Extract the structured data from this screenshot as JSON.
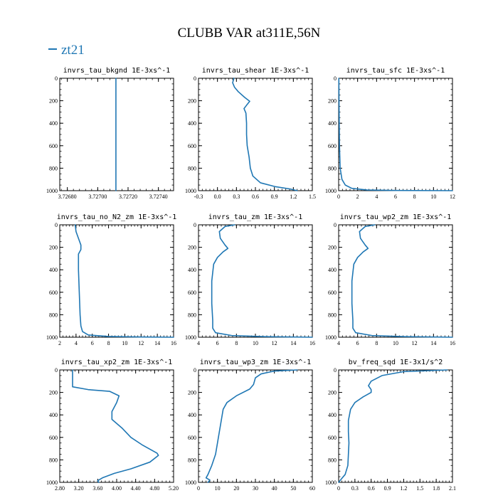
{
  "title": "CLUBB VAR at311E,56N",
  "legend": {
    "label": "zt21",
    "color": "#1f77b4"
  },
  "chart_data": [
    {
      "type": "line",
      "title": "invrs_tau_bkgnd   1E-3xs^-1",
      "xlim": [
        3.72675,
        3.7275
      ],
      "ylim": [
        0,
        1000
      ],
      "y_inverted": true,
      "xticks": [
        "3.72680",
        "3.72700",
        "3.72720",
        "3.72740"
      ],
      "xtick_values": [
        3.7268,
        3.727,
        3.7272,
        3.7274
      ],
      "yticks": [
        "0",
        "200",
        "400",
        "600",
        "800",
        "1000"
      ],
      "series": [
        {
          "values": [
            [
              3.72712,
              0
            ],
            [
              3.72712,
              1000
            ]
          ]
        }
      ]
    },
    {
      "type": "line",
      "title": "invrs_tau_shear   1E-3xs^-1",
      "xlim": [
        -0.3,
        1.5
      ],
      "ylim": [
        0,
        1000
      ],
      "y_inverted": true,
      "xticks": [
        "-0.3",
        "0.0",
        "0.3",
        "0.6",
        "0.9",
        "1.2",
        "1.5"
      ],
      "xtick_values": [
        -0.3,
        0,
        0.3,
        0.6,
        0.9,
        1.2,
        1.5
      ],
      "yticks": [
        "0",
        "200",
        "400",
        "600",
        "800",
        "1000"
      ],
      "series": [
        {
          "values": [
            [
              0.26,
              0
            ],
            [
              0.24,
              40
            ],
            [
              0.27,
              80
            ],
            [
              0.33,
              120
            ],
            [
              0.43,
              170
            ],
            [
              0.51,
              205
            ],
            [
              0.46,
              240
            ],
            [
              0.42,
              270
            ],
            [
              0.45,
              310
            ],
            [
              0.46,
              400
            ],
            [
              0.46,
              500
            ],
            [
              0.47,
              600
            ],
            [
              0.5,
              700
            ],
            [
              0.52,
              800
            ],
            [
              0.56,
              870
            ],
            [
              0.68,
              930
            ],
            [
              0.92,
              965
            ],
            [
              1.15,
              985
            ],
            [
              1.26,
              1000
            ]
          ]
        }
      ]
    },
    {
      "type": "line",
      "title": "invrs_tau_sfc   1E-3xs^-1",
      "xlim": [
        0,
        12
      ],
      "ylim": [
        0,
        1000
      ],
      "y_inverted": true,
      "xticks": [
        "0",
        "2",
        "4",
        "6",
        "8",
        "10",
        "12"
      ],
      "xtick_values": [
        0,
        2,
        4,
        6,
        8,
        10,
        12
      ],
      "yticks": [
        "0",
        "200",
        "400",
        "600",
        "800",
        "1000"
      ],
      "series": [
        {
          "values": [
            [
              0.02,
              0
            ],
            [
              0.05,
              300
            ],
            [
              0.09,
              600
            ],
            [
              0.16,
              800
            ],
            [
              0.35,
              900
            ],
            [
              0.7,
              950
            ],
            [
              1.4,
              980
            ],
            [
              3.0,
              994
            ],
            [
              6.0,
              998
            ],
            [
              12,
              1000
            ]
          ]
        }
      ]
    },
    {
      "type": "line",
      "title": "invrs_tau_no_N2_zm   1E-3xs^-1",
      "xlim": [
        2,
        16
      ],
      "ylim": [
        0,
        1000
      ],
      "y_inverted": true,
      "xticks": [
        "2",
        "4",
        "6",
        "8",
        "10",
        "12",
        "14",
        "16"
      ],
      "xtick_values": [
        2,
        4,
        6,
        8,
        10,
        12,
        14,
        16
      ],
      "yticks": [
        "0",
        "200",
        "400",
        "600",
        "800",
        "1000"
      ],
      "series": [
        {
          "values": [
            [
              3.9,
              0
            ],
            [
              4.0,
              60
            ],
            [
              4.3,
              120
            ],
            [
              4.6,
              180
            ],
            [
              4.6,
              220
            ],
            [
              4.3,
              260
            ],
            [
              4.3,
              400
            ],
            [
              4.4,
              600
            ],
            [
              4.5,
              800
            ],
            [
              4.6,
              900
            ],
            [
              4.8,
              950
            ],
            [
              5.5,
              980
            ],
            [
              8,
              993
            ],
            [
              12,
              998
            ],
            [
              16,
              1000
            ]
          ]
        }
      ]
    },
    {
      "type": "line",
      "title": "invrs_tau_zm   1E-3xs^-1",
      "xlim": [
        4,
        16
      ],
      "ylim": [
        0,
        1000
      ],
      "y_inverted": true,
      "xticks": [
        "4",
        "6",
        "8",
        "10",
        "12",
        "14",
        "16"
      ],
      "xtick_values": [
        4,
        6,
        8,
        10,
        12,
        14,
        16
      ],
      "yticks": [
        "0",
        "200",
        "400",
        "600",
        "800",
        "1000"
      ],
      "series": [
        {
          "values": [
            [
              7.8,
              0
            ],
            [
              6.8,
              15
            ],
            [
              6.2,
              60
            ],
            [
              6.3,
              120
            ],
            [
              6.8,
              180
            ],
            [
              7.1,
              210
            ],
            [
              6.6,
              240
            ],
            [
              6.0,
              290
            ],
            [
              5.6,
              350
            ],
            [
              5.4,
              500
            ],
            [
              5.4,
              700
            ],
            [
              5.5,
              850
            ],
            [
              5.5,
              920
            ],
            [
              5.8,
              960
            ],
            [
              7.5,
              985
            ],
            [
              11,
              995
            ],
            [
              16,
              1000
            ]
          ]
        }
      ]
    },
    {
      "type": "line",
      "title": "invrs_tau_wp2_zm   1E-3xs^-1",
      "xlim": [
        4,
        16
      ],
      "ylim": [
        0,
        1000
      ],
      "y_inverted": true,
      "xticks": [
        "4",
        "6",
        "8",
        "10",
        "12",
        "14",
        "16"
      ],
      "xtick_values": [
        4,
        6,
        8,
        10,
        12,
        14,
        16
      ],
      "yticks": [
        "0",
        "200",
        "400",
        "600",
        "800",
        "1000"
      ],
      "series": [
        {
          "values": [
            [
              7.8,
              0
            ],
            [
              6.8,
              15
            ],
            [
              6.2,
              60
            ],
            [
              6.3,
              120
            ],
            [
              6.8,
              180
            ],
            [
              7.1,
              210
            ],
            [
              6.6,
              240
            ],
            [
              6.0,
              290
            ],
            [
              5.6,
              350
            ],
            [
              5.4,
              500
            ],
            [
              5.4,
              700
            ],
            [
              5.5,
              850
            ],
            [
              5.5,
              920
            ],
            [
              5.8,
              960
            ],
            [
              7.5,
              985
            ],
            [
              11,
              995
            ],
            [
              16,
              1000
            ]
          ]
        }
      ]
    },
    {
      "type": "line",
      "title": "invrs_tau_xp2_zm   1E-3xs^-1",
      "xlim": [
        2.8,
        5.2
      ],
      "ylim": [
        0,
        1000
      ],
      "y_inverted": true,
      "xticks": [
        "2.80",
        "3.20",
        "3.60",
        "4.00",
        "4.40",
        "4.80",
        "5.20"
      ],
      "xtick_values": [
        2.8,
        3.2,
        3.6,
        4.0,
        4.4,
        4.8,
        5.2
      ],
      "yticks": [
        "0",
        "200",
        "400",
        "600",
        "800",
        "1000"
      ],
      "series": [
        {
          "values": [
            [
              3.07,
              0
            ],
            [
              3.07,
              150
            ],
            [
              3.4,
              175
            ],
            [
              3.85,
              190
            ],
            [
              4.05,
              230
            ],
            [
              4.0,
              290
            ],
            [
              3.9,
              370
            ],
            [
              3.9,
              440
            ],
            [
              4.12,
              520
            ],
            [
              4.3,
              600
            ],
            [
              4.55,
              670
            ],
            [
              4.85,
              740
            ],
            [
              4.88,
              760
            ],
            [
              4.7,
              820
            ],
            [
              4.3,
              880
            ],
            [
              3.95,
              920
            ],
            [
              3.7,
              960
            ],
            [
              3.6,
              985
            ],
            [
              3.62,
              1000
            ]
          ]
        }
      ]
    },
    {
      "type": "line",
      "title": "invrs_tau_wp3_zm   1E-3xs^-1",
      "xlim": [
        0,
        60
      ],
      "ylim": [
        0,
        1000
      ],
      "y_inverted": true,
      "xticks": [
        "0",
        "10",
        "20",
        "30",
        "40",
        "50",
        "60"
      ],
      "xtick_values": [
        0,
        10,
        20,
        30,
        40,
        50,
        60
      ],
      "yticks": [
        "0",
        "200",
        "400",
        "600",
        "800",
        "1000"
      ],
      "series": [
        {
          "values": [
            [
              52,
              0
            ],
            [
              40,
              10
            ],
            [
              33,
              35
            ],
            [
              30,
              70
            ],
            [
              29,
              130
            ],
            [
              27,
              170
            ],
            [
              20,
              230
            ],
            [
              15,
              290
            ],
            [
              13,
              350
            ],
            [
              12,
              450
            ],
            [
              11,
              550
            ],
            [
              10,
              650
            ],
            [
              9,
              750
            ],
            [
              7,
              850
            ],
            [
              5,
              930
            ],
            [
              4,
              960
            ],
            [
              6,
              980
            ],
            [
              5,
              1000
            ]
          ]
        }
      ]
    },
    {
      "type": "line",
      "title": "bv_freq_sqd   1E-3x1/s^2",
      "xlim": [
        0,
        2.1
      ],
      "ylim": [
        0,
        1000
      ],
      "y_inverted": true,
      "xticks": [
        "0",
        "0.3",
        "0.6",
        "0.9",
        "1.2",
        "1.5",
        "1.8",
        "2.1"
      ],
      "xtick_values": [
        0,
        0.3,
        0.6,
        0.9,
        1.2,
        1.5,
        1.8,
        2.1
      ],
      "yticks": [
        "0",
        "200",
        "400",
        "600",
        "800",
        "1000"
      ],
      "series": [
        {
          "values": [
            [
              2.0,
              0
            ],
            [
              1.2,
              15
            ],
            [
              0.8,
              50
            ],
            [
              0.6,
              100
            ],
            [
              0.55,
              140
            ],
            [
              0.6,
              175
            ],
            [
              0.6,
              200
            ],
            [
              0.45,
              240
            ],
            [
              0.3,
              290
            ],
            [
              0.22,
              350
            ],
            [
              0.18,
              450
            ],
            [
              0.18,
              550
            ],
            [
              0.19,
              650
            ],
            [
              0.18,
              750
            ],
            [
              0.17,
              850
            ],
            [
              0.12,
              930
            ],
            [
              0.05,
              970
            ],
            [
              0,
              1000
            ]
          ]
        }
      ]
    }
  ]
}
